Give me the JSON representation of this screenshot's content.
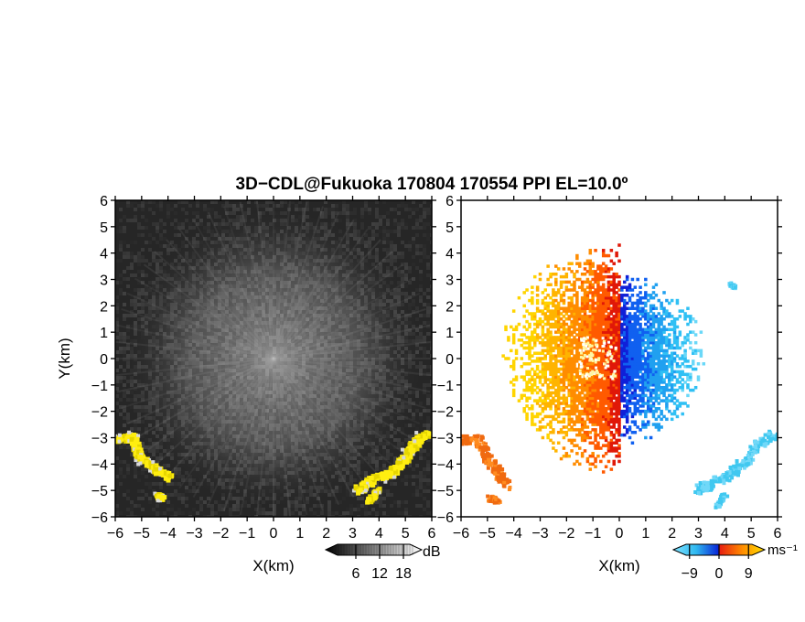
{
  "title": "3D−CDL@Fukuoka 170804 170554 PPI EL=10.0º",
  "chart_data": [
    {
      "type": "heatmap",
      "panel": "left",
      "quantity": "reflectivity",
      "title": "",
      "xlabel": "X(km)",
      "ylabel": "Y(km)",
      "xlim": [
        -6,
        6
      ],
      "ylim": [
        -6,
        6
      ],
      "x_ticks": [
        "−6",
        "−5",
        "−4",
        "−3",
        "−2",
        "−1",
        "0",
        "1",
        "2",
        "3",
        "4",
        "5",
        "6"
      ],
      "y_ticks": [
        "−6",
        "−5",
        "−4",
        "−3",
        "−2",
        "−1",
        "0",
        "1",
        "2",
        "3",
        "4",
        "5",
        "6"
      ],
      "colorbar": {
        "unit": "dB",
        "ticks": [
          "6",
          "12",
          "18"
        ],
        "tick_values": [
          6,
          12,
          18
        ],
        "range": [
          0,
          21
        ],
        "colormap": "grayscale"
      },
      "features": [
        {
          "region": "lower-left edge",
          "x": [
            -6,
            -3.8
          ],
          "y": [
            -5.4,
            -2.9
          ],
          "color": "yellow"
        },
        {
          "region": "lower-right edge",
          "x": [
            3.1,
            5.9
          ],
          "y": [
            -5.3,
            -2.9
          ],
          "color": "yellow"
        }
      ]
    },
    {
      "type": "heatmap",
      "panel": "right",
      "quantity": "doppler velocity",
      "title": "",
      "xlabel": "X(km)",
      "ylabel": "",
      "xlim": [
        -6,
        6
      ],
      "ylim": [
        -6,
        6
      ],
      "x_ticks": [
        "−6",
        "−5",
        "−4",
        "−3",
        "−2",
        "−1",
        "0",
        "1",
        "2",
        "3",
        "4",
        "5",
        "6"
      ],
      "y_ticks": [
        "−6",
        "−5",
        "−4",
        "−3",
        "−2",
        "−1",
        "0",
        "1",
        "2",
        "3",
        "4",
        "5",
        "6"
      ],
      "colorbar": {
        "unit": "ms⁻¹",
        "ticks": [
          "−9",
          "0",
          "9"
        ],
        "tick_values": [
          -9,
          0,
          9
        ],
        "range": [
          -12,
          12
        ],
        "colormap": "cyan-blue-red-yellow"
      },
      "features": [
        {
          "region": "west of radar",
          "sign": "positive",
          "color": "orange-yellow"
        },
        {
          "region": "east of radar",
          "sign": "negative",
          "color": "blue-cyan"
        }
      ]
    }
  ]
}
